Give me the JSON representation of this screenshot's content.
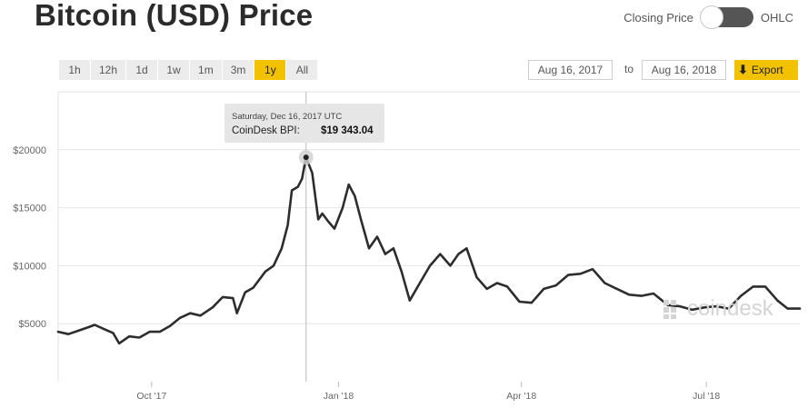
{
  "title": "Bitcoin (USD) Price",
  "toggle": {
    "left_label": "Closing Price",
    "right_label": "OHLC",
    "state": "Closing Price"
  },
  "ranges": [
    "1h",
    "12h",
    "1d",
    "1w",
    "1m",
    "3m",
    "1y",
    "All"
  ],
  "active_range": "1y",
  "date_from": "Aug 16, 2017",
  "to_label": "to",
  "date_to": "Aug 16, 2018",
  "export_label": "Export",
  "tooltip": {
    "date": "Saturday, Dec 16, 2017 UTC",
    "series_label": "CoinDesk BPI:",
    "value": "$19 343.04"
  },
  "watermark": "coindesk",
  "colors": {
    "accent": "#f2c100",
    "line": "#2d2d2d",
    "grid": "#e6e6e6"
  },
  "chart_data": {
    "type": "line",
    "ytick_labels": [
      "$5000",
      "$10000",
      "$15000",
      "$20000"
    ],
    "yticks": [
      5000,
      10000,
      15000,
      20000
    ],
    "xtick_labels": [
      "Oct '17",
      "Jan '18",
      "Apr '18",
      "Jul '18"
    ],
    "xticks": [
      "2017-10-01",
      "2018-01-01",
      "2018-04-01",
      "2018-07-01"
    ],
    "xlim": [
      "2017-08-16",
      "2018-08-16"
    ],
    "ylim": [
      0,
      25000
    ],
    "grid": true,
    "series": [
      {
        "x": [
          "2017-08-16",
          "2017-08-21",
          "2017-08-26",
          "2017-08-31",
          "2017-09-03",
          "2017-09-08",
          "2017-09-12",
          "2017-09-15",
          "2017-09-20",
          "2017-09-25",
          "2017-09-30",
          "2017-10-05",
          "2017-10-10",
          "2017-10-15",
          "2017-10-20",
          "2017-10-25",
          "2017-10-31",
          "2017-11-05",
          "2017-11-10",
          "2017-11-12",
          "2017-11-16",
          "2017-11-20",
          "2017-11-26",
          "2017-11-30",
          "2017-12-04",
          "2017-12-07",
          "2017-12-09",
          "2017-12-12",
          "2017-12-14",
          "2017-12-16",
          "2017-12-19",
          "2017-12-22",
          "2017-12-24",
          "2017-12-27",
          "2017-12-30",
          "2018-01-03",
          "2018-01-06",
          "2018-01-09",
          "2018-01-12",
          "2018-01-16",
          "2018-01-20",
          "2018-01-24",
          "2018-01-28",
          "2018-02-01",
          "2018-02-05",
          "2018-02-10",
          "2018-02-15",
          "2018-02-20",
          "2018-02-25",
          "2018-03-01",
          "2018-03-05",
          "2018-03-10",
          "2018-03-15",
          "2018-03-20",
          "2018-03-25",
          "2018-03-31",
          "2018-04-06",
          "2018-04-12",
          "2018-04-18",
          "2018-04-24",
          "2018-04-30",
          "2018-05-06",
          "2018-05-12",
          "2018-05-18",
          "2018-05-24",
          "2018-05-30",
          "2018-06-05",
          "2018-06-12",
          "2018-06-18",
          "2018-06-24",
          "2018-06-30",
          "2018-07-06",
          "2018-07-12",
          "2018-07-18",
          "2018-07-24",
          "2018-07-30",
          "2018-08-05",
          "2018-08-10",
          "2018-08-16"
        ],
        "values": [
          4300,
          4100,
          4400,
          4700,
          4900,
          4500,
          4200,
          3300,
          3900,
          3800,
          4300,
          4300,
          4800,
          5500,
          5900,
          5700,
          6400,
          7300,
          7200,
          5900,
          7700,
          8100,
          9500,
          10000,
          11500,
          13500,
          16500,
          16800,
          17500,
          19343,
          18000,
          14000,
          14500,
          13800,
          13200,
          15000,
          17000,
          16000,
          14000,
          11500,
          12500,
          11000,
          11500,
          9500,
          7000,
          8500,
          10000,
          11000,
          10000,
          11000,
          11500,
          9000,
          8000,
          8500,
          8200,
          6900,
          6800,
          8000,
          8300,
          9200,
          9300,
          9700,
          8500,
          8000,
          7500,
          7400,
          7600,
          6600,
          6500,
          6200,
          6400,
          6500,
          6300,
          7400,
          8200,
          8200,
          7000,
          6300,
          6300
        ]
      }
    ]
  }
}
